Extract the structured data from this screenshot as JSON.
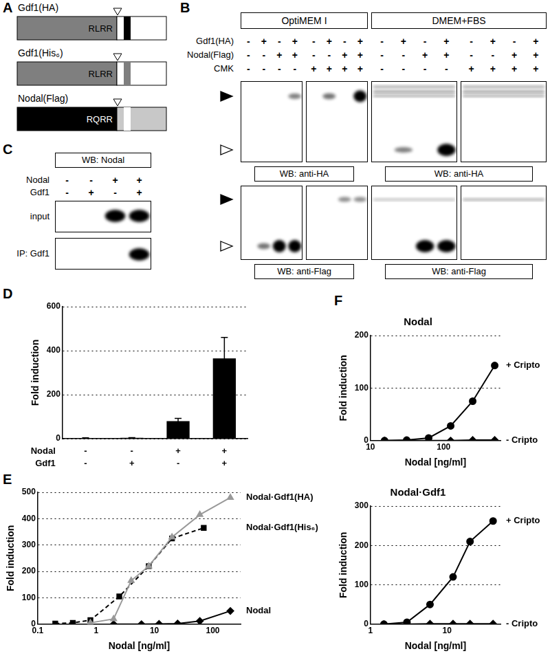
{
  "panel_labels": [
    "A",
    "B",
    "C",
    "D",
    "E",
    "F"
  ],
  "schematic": {
    "constructs": [
      {
        "name": "Gdf1(HA)",
        "motif": "RLRR"
      },
      {
        "name": "Gdf1(His₆)",
        "motif": "RLRR"
      },
      {
        "name": "Nodal(Flag)",
        "motif": "RQRR"
      }
    ]
  },
  "blot_b": {
    "media": [
      "OptiMEM I",
      "DMEM+FBS"
    ],
    "rows": [
      {
        "name": "Gdf1(HA)",
        "values": [
          "-",
          "+",
          "-",
          "+",
          "-",
          "+",
          "-",
          "+",
          "-",
          "+",
          "-",
          "+",
          "-",
          "+",
          "-",
          "+"
        ]
      },
      {
        "name": "Nodal(Flag)",
        "values": [
          "-",
          "-",
          "+",
          "+",
          "-",
          "-",
          "+",
          "+",
          "-",
          "-",
          "+",
          "+",
          "-",
          "-",
          "+",
          "+"
        ]
      },
      {
        "name": "CMK",
        "values": [
          "-",
          "-",
          "-",
          "-",
          "+",
          "+",
          "+",
          "+",
          "-",
          "-",
          "-",
          "-",
          "+",
          "+",
          "+",
          "+"
        ]
      }
    ],
    "detections": [
      "WB: anti-HA",
      "WB: anti-Flag"
    ]
  },
  "blot_c": {
    "title": "WB: Nodal",
    "rows": [
      {
        "name": "Nodal",
        "values": [
          "-",
          "-",
          "+",
          "+"
        ]
      },
      {
        "name": "Gdf1",
        "values": [
          "-",
          "+",
          "-",
          "+"
        ]
      }
    ],
    "blots": [
      "input",
      "IP: Gdf1"
    ]
  },
  "chart_data": [
    {
      "type": "bar",
      "categories": [
        null,
        null,
        null,
        null
      ],
      "conditions": [
        {
          "name": "Nodal",
          "values": [
            "-",
            "-",
            "+",
            "+"
          ]
        },
        {
          "name": "Gdf1",
          "values": [
            "-",
            "+",
            "-",
            "+"
          ]
        }
      ],
      "values": [
        3,
        4,
        80,
        365
      ],
      "errors": [
        1,
        1,
        12,
        95
      ],
      "color": "#000000",
      "y_label": "Fold induction",
      "ylim": [
        0,
        600
      ],
      "yticks": [
        0,
        200,
        400,
        600
      ],
      "grid": true,
      "tick_labels": "y"
    },
    {
      "type": "line",
      "x_label": "Nodal [ng/ml]",
      "y_label": "Fold induction",
      "log": "x",
      "xlim": [
        0.1,
        300
      ],
      "xticks": [
        0.1,
        1,
        10,
        100
      ],
      "ylim": [
        0,
        500
      ],
      "yticks": [
        0,
        100,
        200,
        300,
        400,
        500
      ],
      "grid": true,
      "series": [
        {
          "name": "Nodal·Gdf1(HA)",
          "color": "#999999",
          "marker": "triangle",
          "line_style": "solid",
          "x": [
            0.8,
            2,
            4,
            8,
            20,
            60,
            200
          ],
          "values": [
            5,
            20,
            165,
            220,
            330,
            415,
            480
          ]
        },
        {
          "name": "Nodal·Gdf1(His₆)",
          "color": "#000000",
          "marker": "square",
          "line_style": "dashed",
          "x": [
            0.2,
            0.4,
            0.8,
            2.5,
            8,
            20,
            70
          ],
          "values": [
            2,
            5,
            15,
            105,
            220,
            325,
            365
          ]
        },
        {
          "name": "Nodal",
          "color": "#000000",
          "marker": "diamond",
          "line_style": "solid",
          "x": [
            2,
            6,
            12,
            25,
            60,
            200
          ],
          "values": [
            0,
            0,
            1,
            2,
            12,
            50
          ]
        }
      ]
    },
    {
      "type": "line",
      "title": "Nodal",
      "x_label": "Nodal [ng/ml]",
      "y_label": "Fold induction",
      "log": "x",
      "xlim": [
        10,
        600
      ],
      "xticks": [
        10,
        100
      ],
      "ylim": [
        0,
        200
      ],
      "yticks": [
        0,
        100,
        200
      ],
      "grid": true,
      "series": [
        {
          "name": "+ Cripto",
          "color": "#000000",
          "marker": "circle",
          "line_style": "solid",
          "x": [
            15.6,
            31.3,
            62.5,
            125,
            250,
            500
          ],
          "values": [
            0,
            1,
            5,
            28,
            75,
            143
          ]
        },
        {
          "name": "- Cripto",
          "color": "#000000",
          "marker": "diamond",
          "line_style": "solid",
          "x": [
            15.6,
            31.3,
            62.5,
            125,
            250,
            500
          ],
          "values": [
            0,
            0,
            0,
            0,
            1,
            1
          ]
        }
      ]
    },
    {
      "type": "line",
      "title": "Nodal·Gdf1",
      "x_label": "Nodal [ng/ml]",
      "y_label": "Fold induction",
      "log": "x",
      "xlim": [
        1,
        50
      ],
      "xticks": [
        1,
        10
      ],
      "ylim": [
        0,
        300
      ],
      "yticks": [
        0,
        100,
        200,
        300
      ],
      "grid": true,
      "series": [
        {
          "name": "+ Cripto",
          "color": "#000000",
          "marker": "circle",
          "line_style": "solid",
          "x": [
            1.5,
            3,
            6,
            12,
            20,
            40
          ],
          "values": [
            0,
            5,
            50,
            120,
            210,
            262
          ]
        },
        {
          "name": "- Cripto",
          "color": "#000000",
          "marker": "diamond",
          "line_style": "solid",
          "x": [
            1.5,
            3,
            6,
            12,
            20,
            40
          ],
          "values": [
            0,
            0,
            1,
            1,
            1,
            1
          ]
        }
      ]
    }
  ]
}
